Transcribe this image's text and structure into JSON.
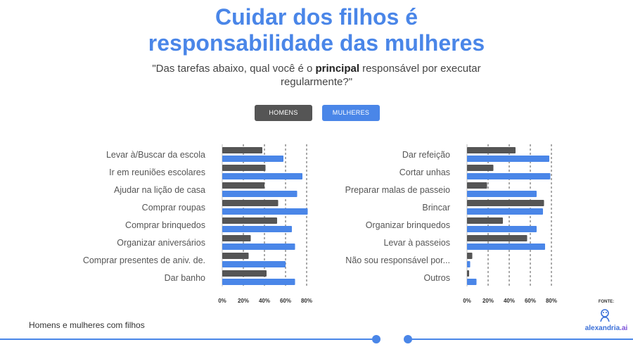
{
  "header": {
    "title_line1": "Cuidar dos filhos é",
    "title_line2": "responsabilidade das mulheres",
    "subtitle_before": "\"Das tarefas abaixo, qual você é o ",
    "subtitle_bold": "principal",
    "subtitle_after": " responsável por executar regularmente?\""
  },
  "legend": {
    "men_label": "HOMENS",
    "women_label": "MULHERES"
  },
  "colors": {
    "men": "#555555",
    "women": "#4a86e8",
    "title": "#4a86e8"
  },
  "chart_data": [
    {
      "type": "bar",
      "orientation": "horizontal",
      "categories": [
        "Levar à/Buscar da escola",
        "Ir em reuniões escolares",
        "Ajudar na lição de casa",
        "Comprar roupas",
        "Comprar brinquedos",
        "Organizar aniversários",
        "Comprar presentes de aniv. de.",
        "Dar banho"
      ],
      "series": [
        {
          "name": "HOMENS",
          "values": [
            38,
            41,
            40,
            53,
            52,
            27,
            25,
            42
          ]
        },
        {
          "name": "MULHERES",
          "values": [
            58,
            76,
            71,
            81,
            66,
            69,
            60,
            69
          ]
        }
      ],
      "xticks": [
        "0%",
        "20%",
        "40%",
        "60%",
        "80%"
      ],
      "xlim": [
        0,
        80
      ]
    },
    {
      "type": "bar",
      "orientation": "horizontal",
      "categories": [
        "Dar refeição",
        "Cortar unhas",
        "Preparar malas de passeio",
        "Brincar",
        "Organizar brinquedos",
        "Levar à passeios",
        "Não sou responsável por...",
        "Outros"
      ],
      "series": [
        {
          "name": "HOMENS",
          "values": [
            46,
            25,
            19,
            73,
            34,
            57,
            5,
            2
          ]
        },
        {
          "name": "MULHERES",
          "values": [
            78,
            79,
            66,
            72,
            66,
            74,
            3,
            9
          ]
        }
      ],
      "xticks": [
        "0%",
        "20%",
        "40%",
        "60%",
        "80%"
      ],
      "xlim": [
        0,
        80
      ]
    }
  ],
  "footer": {
    "text": "Homens e mulheres com filhos",
    "source_label": "FONTE:",
    "logo_main": "alexandria",
    "logo_suffix": ".ai"
  }
}
